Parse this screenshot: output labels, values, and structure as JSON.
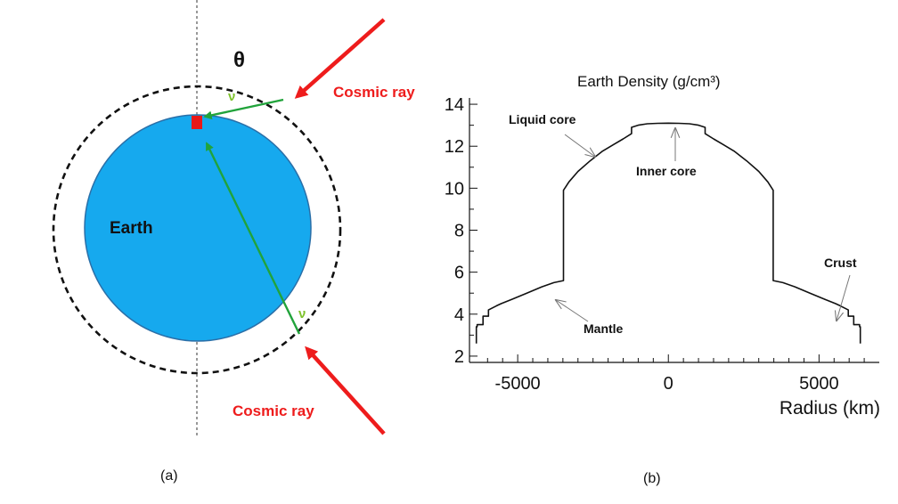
{
  "panel_a": {
    "angle_label": "θ",
    "earth_label": "Earth",
    "nu_label": "ν",
    "cosmic_ray_top": "Cosmic ray",
    "cosmic_ray_bottom": "Cosmic ray",
    "caption": "(a)",
    "colors": {
      "earth_fill": "#16a9ee",
      "earth_stroke": "#2a6fa8",
      "ray": "#ee1c1c",
      "neutrino": "#21a33b",
      "detector": "#e81818",
      "nu_text": "#7ec22c"
    }
  },
  "panel_b": {
    "caption": "(b)",
    "chart_data": {
      "type": "line",
      "title": "Earth Density (g/cm³)",
      "xlabel": "Radius (km)",
      "ylabel": "",
      "xlim": [
        -6600,
        7000
      ],
      "ylim": [
        1.7,
        14.3
      ],
      "xticks": [
        -5000,
        0,
        5000
      ],
      "xtick_labels": [
        "-5000",
        "0",
        "5000"
      ],
      "yticks": [
        2,
        4,
        6,
        8,
        10,
        12,
        14
      ],
      "ytick_labels": [
        "2",
        "4",
        "6",
        "8",
        "10",
        "12",
        "14"
      ],
      "series": [
        {
          "x": [
            -6371,
            -6371,
            -6346,
            -6346,
            -6151,
            -6151,
            -5971,
            -5971,
            -5701,
            -5550,
            -5200,
            -4700,
            -4200,
            -3800,
            -3480,
            -3480,
            -3300,
            -3000,
            -2600,
            -2200,
            -1800,
            -1500,
            -1221,
            -1221,
            -1000,
            -700,
            -350,
            0,
            350,
            700,
            1000,
            1221,
            1221,
            1500,
            1800,
            2200,
            2600,
            3000,
            3300,
            3480,
            3480,
            3800,
            4200,
            4700,
            5200,
            5550,
            5701,
            5971,
            5971,
            6151,
            6151,
            6346,
            6346,
            6371,
            6371
          ],
          "y": [
            2.6,
            3.4,
            3.4,
            3.5,
            3.5,
            3.9,
            3.9,
            4.2,
            4.4,
            4.5,
            4.7,
            5.0,
            5.3,
            5.5,
            5.6,
            9.9,
            10.3,
            10.8,
            11.3,
            11.75,
            12.1,
            12.35,
            12.6,
            12.9,
            13.0,
            13.07,
            13.09,
            13.1,
            13.09,
            13.07,
            13.0,
            12.9,
            12.6,
            12.35,
            12.1,
            11.75,
            11.3,
            10.8,
            10.3,
            9.9,
            5.6,
            5.5,
            5.3,
            5.0,
            4.7,
            4.5,
            4.4,
            4.2,
            3.9,
            3.9,
            3.5,
            3.5,
            3.4,
            3.4,
            2.6
          ]
        }
      ],
      "annotations": [
        {
          "text": "Liquid core"
        },
        {
          "text": "Inner core"
        },
        {
          "text": "Crust"
        },
        {
          "text": "Mantle"
        }
      ],
      "grid": false
    }
  }
}
